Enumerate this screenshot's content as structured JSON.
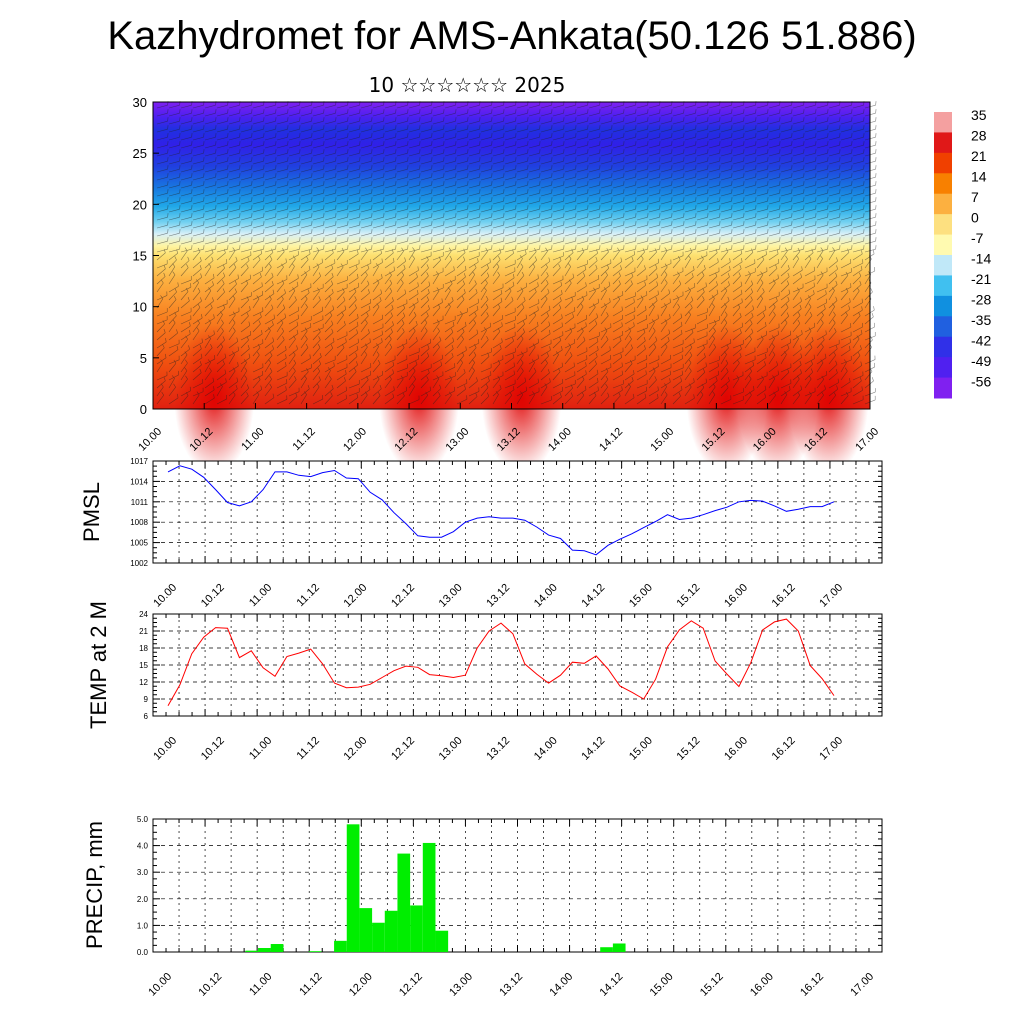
{
  "title": "Kazhydromet for AMS-Ankata(50.126 51.886)",
  "subtitle": "10 ☆☆☆☆☆☆ 2025",
  "chart_data": [
    {
      "type": "heatmap",
      "name": "vertical-cross-section",
      "ylim": [
        0,
        30
      ],
      "yticks": [
        "0",
        "5",
        "10",
        "15",
        "20",
        "25",
        "30"
      ],
      "xticks": [
        "10.00",
        "10.12",
        "11.00",
        "11.12",
        "12.00",
        "12.12",
        "13.00",
        "13.12",
        "14.00",
        "14.12",
        "15.00",
        "15.12",
        "16.00",
        "16.12",
        "17.00"
      ],
      "colorbar": {
        "labels": [
          "35",
          "28",
          "21",
          "14",
          "7",
          "0",
          "-7",
          "-14",
          "-21",
          "-28",
          "-35",
          "-42",
          "-49",
          "-56"
        ],
        "colors": [
          "#f4a0a0",
          "#e01818",
          "#f04000",
          "#f88000",
          "#fcb040",
          "#fde080",
          "#fffab0",
          "#c0e8f8",
          "#40c0f0",
          "#1090e0",
          "#2060e0",
          "#3030e8",
          "#5020f0",
          "#8020f0"
        ]
      },
      "surface_maxima_x": [
        "10.12",
        "12.12",
        "13.12",
        "15.12",
        "16.00",
        "16.12"
      ]
    },
    {
      "type": "line",
      "name": "pmsl",
      "ylabel": "PMSL",
      "ylim": [
        1002,
        1017
      ],
      "yticks": [
        "1002",
        "1005",
        "1008",
        "1011",
        "1014",
        "1017"
      ],
      "xticks": [
        "10.00",
        "10.12",
        "11.00",
        "11.12",
        "12.00",
        "12.12",
        "13.00",
        "13.12",
        "14.00",
        "14.12",
        "15.00",
        "15.12",
        "16.00",
        "16.12",
        "17.00"
      ],
      "color": "#0000ff",
      "values": [
        1015.4,
        1016.3,
        1015.8,
        1014.6,
        1012.8,
        1010.9,
        1010.4,
        1011.0,
        1012.8,
        1015.4,
        1015.4,
        1014.9,
        1014.7,
        1015.3,
        1015.6,
        1014.5,
        1014.4,
        1012.4,
        1011.3,
        1009.4,
        1007.8,
        1006.0,
        1005.8,
        1005.8,
        1006.6,
        1008.0,
        1008.6,
        1008.8,
        1008.6,
        1008.6,
        1008.3,
        1007.3,
        1006.1,
        1005.6,
        1003.9,
        1003.8,
        1003.2,
        1004.6,
        1005.5,
        1006.3,
        1007.2,
        1008.1,
        1009.1,
        1008.4,
        1008.6,
        1009.1,
        1009.7,
        1010.2,
        1011.0,
        1011.2,
        1011.1,
        1010.4,
        1009.6,
        1009.9,
        1010.3,
        1010.3,
        1011.0
      ]
    },
    {
      "type": "line",
      "name": "temp-2m",
      "ylabel": "TEMP at 2 M",
      "ylim": [
        6,
        24
      ],
      "yticks": [
        "6",
        "9",
        "12",
        "15",
        "18",
        "21",
        "24"
      ],
      "xticks": [
        "10.00",
        "10.12",
        "11.00",
        "11.12",
        "12.00",
        "12.12",
        "13.00",
        "13.12",
        "14.00",
        "14.12",
        "15.00",
        "15.12",
        "16.00",
        "16.12",
        "17.00"
      ],
      "color": "#ff0000",
      "values": [
        7.8,
        11.5,
        17.0,
        19.9,
        21.6,
        21.5,
        16.3,
        17.5,
        14.5,
        13.0,
        16.5,
        17.1,
        17.8,
        15.2,
        11.8,
        11.0,
        11.1,
        11.6,
        12.8,
        14.0,
        14.8,
        14.6,
        13.3,
        13.1,
        12.8,
        13.2,
        18.0,
        21.0,
        22.4,
        20.5,
        15.2,
        13.4,
        11.8,
        13.2,
        15.5,
        15.3,
        16.6,
        14.3,
        11.3,
        10.2,
        9.0,
        12.5,
        18.2,
        21.2,
        22.8,
        21.5,
        15.7,
        13.4,
        11.2,
        15.4,
        21.2,
        22.6,
        23.1,
        21.0,
        14.9,
        12.6,
        9.6
      ]
    },
    {
      "type": "bar",
      "name": "precip",
      "ylabel": "PRECIP, mm",
      "ylim": [
        0,
        5
      ],
      "yticks": [
        "0.0",
        "1.0",
        "2.0",
        "3.0",
        "4.0",
        "5.0"
      ],
      "xticks": [
        "10.00",
        "10.12",
        "11.00",
        "11.12",
        "12.00",
        "12.12",
        "13.00",
        "13.12",
        "14.00",
        "14.12",
        "15.00",
        "15.12",
        "16.00",
        "16.12",
        "17.00"
      ],
      "color": "#00ee00",
      "values": [
        0,
        0,
        0,
        0,
        0,
        0,
        0,
        0.05,
        0.15,
        0.3,
        0,
        0,
        0.03,
        0,
        0.42,
        4.8,
        1.65,
        1.1,
        1.55,
        3.7,
        1.75,
        4.1,
        0.8,
        0,
        0,
        0,
        0,
        0,
        0,
        0,
        0,
        0,
        0,
        0,
        0,
        0.18,
        0.32,
        0,
        0,
        0,
        0,
        0,
        0,
        0,
        0,
        0,
        0,
        0,
        0,
        0,
        0,
        0,
        0,
        0,
        0,
        0
      ]
    }
  ]
}
